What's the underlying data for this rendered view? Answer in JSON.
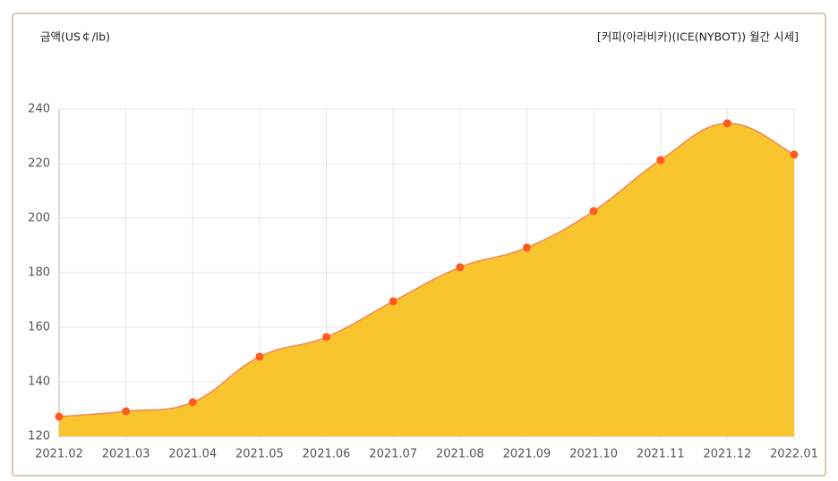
{
  "chart_data": {
    "type": "area",
    "title": "[커피(아라비카)(ICE(NYBOT)) 월간 시세]",
    "y_label": "금액(US￠/lb)",
    "categories": [
      "2021.02",
      "2021.03",
      "2021.04",
      "2021.05",
      "2021.06",
      "2021.07",
      "2021.08",
      "2021.09",
      "2021.10",
      "2021.11",
      "2021.12",
      "2022.01"
    ],
    "values": [
      127.2,
      129.2,
      132.5,
      149.2,
      156.4,
      169.5,
      182,
      189.2,
      202.6,
      221.3,
      234.8,
      223.3
    ],
    "color": "#f9c52f",
    "line_color": "#f5875a",
    "marker_color": "#ff5a1f",
    "ylim": [
      120,
      240
    ],
    "yticks": [
      120,
      140,
      160,
      180,
      200,
      220,
      240
    ],
    "grid": true
  }
}
